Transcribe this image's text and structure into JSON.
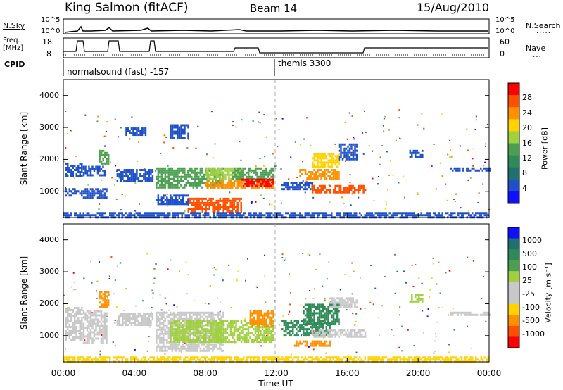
{
  "header": {
    "title": "King Salmon (fitACF)",
    "beam": "Beam 14",
    "date": "15/Aug/2010"
  },
  "top_panels": {
    "nsky_label": "N.Sky",
    "nsky_ticks": [
      "10^5",
      "10^0"
    ],
    "nsearch_label": "N.Search",
    "nsearch_ticks": [
      "10^5",
      "10^0"
    ],
    "freq_label_1": "Freq.",
    "freq_label_2": "[MHz]",
    "freq_ticks": [
      "18",
      "8"
    ],
    "nave_label": "Nave",
    "nave_ticks": [
      "60",
      "0"
    ],
    "cpid_label": "CPID",
    "cpid_1": "normalsound (fast) -157",
    "cpid_2": "themis 3300"
  },
  "chart_data": [
    {
      "type": "heatmap",
      "ylabel": "Slant Range [km]",
      "yticks": [
        "4000",
        "3000",
        "2000",
        "1000"
      ],
      "ylim": [
        180,
        4500
      ],
      "x_range_hours": [
        0,
        24
      ],
      "colorbar": {
        "label": "Power [dB]",
        "ticks": [
          "28",
          "24",
          "20",
          "16",
          "12",
          "8",
          "4"
        ],
        "colors": [
          "#ff0000",
          "#ff5000",
          "#ff9000",
          "#ffd200",
          "#a0d040",
          "#4aa050",
          "#2e8b57",
          "#207070",
          "#1e50c8",
          "#1010ff"
        ]
      },
      "regions": [
        {
          "x": [
            0.1,
            1.0
          ],
          "y": [
            1500,
            1900
          ],
          "color": "#1e50c8"
        },
        {
          "x": [
            0.1,
            1.0
          ],
          "y": [
            850,
            1100
          ],
          "color": "#1e50c8"
        },
        {
          "x": [
            1.1,
            2.3
          ],
          "y": [
            1500,
            1800
          ],
          "color": "#1e50c8"
        },
        {
          "x": [
            1.1,
            2.4
          ],
          "y": [
            800,
            1100
          ],
          "color": "#1e50c8"
        },
        {
          "x": [
            2.0,
            2.5
          ],
          "y": [
            1900,
            2300
          ],
          "color": "#4aa050"
        },
        {
          "x": [
            3.0,
            5.0
          ],
          "y": [
            1350,
            1700
          ],
          "color": "#1e50c8"
        },
        {
          "x": [
            3.5,
            4.6
          ],
          "y": [
            2800,
            3000
          ],
          "color": "#1e50c8"
        },
        {
          "x": [
            5.2,
            9.0
          ],
          "y": [
            1100,
            1750
          ],
          "color": "#4aa050"
        },
        {
          "x": [
            6.0,
            7.0
          ],
          "y": [
            2700,
            3100
          ],
          "color": "#1e50c8"
        },
        {
          "x": [
            8.0,
            10.0
          ],
          "y": [
            1400,
            1750
          ],
          "color": "#a0d040"
        },
        {
          "x": [
            9.5,
            11.8
          ],
          "y": [
            1350,
            1750
          ],
          "color": "#4aa050"
        },
        {
          "x": [
            8.0,
            11.8
          ],
          "y": [
            1100,
            1350
          ],
          "color": "#ff9000"
        },
        {
          "x": [
            10.0,
            11.8
          ],
          "y": [
            1150,
            1400
          ],
          "color": "#ff0000"
        },
        {
          "x": [
            7.0,
            10.0
          ],
          "y": [
            400,
            800
          ],
          "color": "#ff5000"
        },
        {
          "x": [
            5.2,
            7.0
          ],
          "y": [
            600,
            900
          ],
          "color": "#1e50c8"
        },
        {
          "x": [
            12.3,
            14.0
          ],
          "y": [
            1100,
            1300
          ],
          "color": "#1e50c8"
        },
        {
          "x": [
            13.3,
            15.5
          ],
          "y": [
            1400,
            1700
          ],
          "color": "#ff9000"
        },
        {
          "x": [
            14.0,
            15.5
          ],
          "y": [
            1800,
            2200
          ],
          "color": "#ffd200"
        },
        {
          "x": [
            14.0,
            17.0
          ],
          "y": [
            1000,
            1200
          ],
          "color": "#ff5000"
        },
        {
          "x": [
            15.5,
            16.5
          ],
          "y": [
            2000,
            2500
          ],
          "color": "#1e50c8"
        },
        {
          "x": [
            19.5,
            20.2
          ],
          "y": [
            2100,
            2300
          ],
          "color": "#1e50c8"
        },
        {
          "x": [
            21.8,
            24.0
          ],
          "y": [
            1650,
            1750
          ],
          "color": "#1e50c8"
        },
        {
          "x": [
            0.0,
            24.0
          ],
          "y": [
            180,
            350
          ],
          "color": "#1e50c8"
        }
      ]
    },
    {
      "type": "heatmap",
      "ylabel": "Slant Range [km]",
      "yticks": [
        "4000",
        "3000",
        "2000",
        "1000"
      ],
      "ylim": [
        180,
        4500
      ],
      "x_range_hours": [
        0,
        24
      ],
      "colorbar": {
        "label": "Velocity [m s⁻¹]",
        "ticks": [
          "1000",
          "500",
          "100",
          "25",
          "-25",
          "-100",
          "-500",
          "-1000"
        ],
        "colors": [
          "#1010ff",
          "#207070",
          "#2e8b57",
          "#4aa050",
          "#a0d040",
          "#c8c8c8",
          "#c8c8c8",
          "#ffd200",
          "#ff9000",
          "#ff5000",
          "#ff0000"
        ]
      },
      "regions": [
        {
          "x": [
            0.1,
            1.0
          ],
          "y": [
            850,
            1900
          ],
          "color": "#c8c8c8"
        },
        {
          "x": [
            1.1,
            2.4
          ],
          "y": [
            800,
            1800
          ],
          "color": "#c8c8c8"
        },
        {
          "x": [
            2.0,
            2.5
          ],
          "y": [
            1900,
            2400
          ],
          "color": "#ff9000"
        },
        {
          "x": [
            3.0,
            5.0
          ],
          "y": [
            1350,
            1700
          ],
          "color": "#c8c8c8"
        },
        {
          "x": [
            5.2,
            9.0
          ],
          "y": [
            500,
            1750
          ],
          "color": "#c8c8c8"
        },
        {
          "x": [
            6.0,
            9.0
          ],
          "y": [
            800,
            1500
          ],
          "color": "#a0d040"
        },
        {
          "x": [
            8.5,
            11.8
          ],
          "y": [
            800,
            1500
          ],
          "color": "#a0d040"
        },
        {
          "x": [
            10.5,
            11.8
          ],
          "y": [
            1300,
            1800
          ],
          "color": "#ff9000"
        },
        {
          "x": [
            12.3,
            15.0
          ],
          "y": [
            1000,
            1500
          ],
          "color": "#2e8b57"
        },
        {
          "x": [
            13.5,
            15.5
          ],
          "y": [
            1400,
            2000
          ],
          "color": "#2e8b57"
        },
        {
          "x": [
            14.0,
            17.0
          ],
          "y": [
            1000,
            1200
          ],
          "color": "#c8c8c8"
        },
        {
          "x": [
            15.0,
            16.5
          ],
          "y": [
            1900,
            2200
          ],
          "color": "#c8c8c8"
        },
        {
          "x": [
            13.0,
            15.0
          ],
          "y": [
            700,
            850
          ],
          "color": "#ff9000"
        },
        {
          "x": [
            19.5,
            20.2
          ],
          "y": [
            2100,
            2300
          ],
          "color": "#a0d040"
        },
        {
          "x": [
            21.8,
            24.0
          ],
          "y": [
            1650,
            1750
          ],
          "color": "#c8c8c8"
        },
        {
          "x": [
            0.0,
            24.0
          ],
          "y": [
            180,
            350
          ],
          "color": "#ffd200"
        }
      ]
    }
  ],
  "x_axis": {
    "ticks": [
      "00:00",
      "04:00",
      "08:00",
      "12:00",
      "16:00",
      "20:00",
      "00:00"
    ],
    "label": "Time UT"
  }
}
